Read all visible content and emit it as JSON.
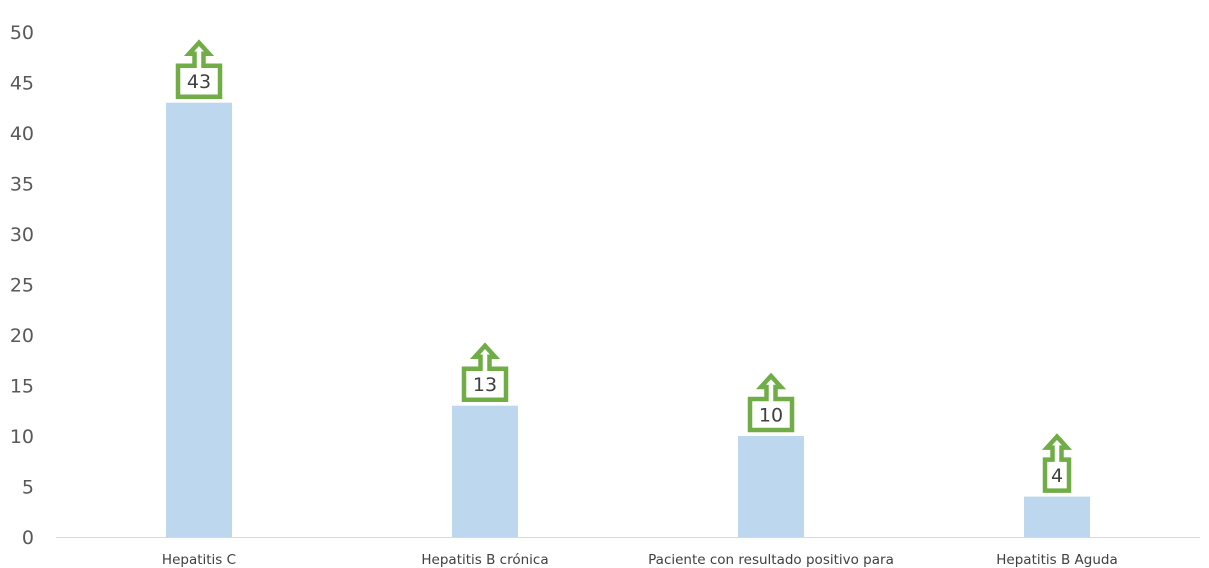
{
  "chart_data": {
    "type": "bar",
    "categories": [
      "Hepatitis C",
      "Hepatitis B crónica",
      "Paciente con resultado positivo para",
      "Hepatitis B Aguda"
    ],
    "values": [
      43,
      13,
      10,
      4
    ],
    "data_labels": [
      "43",
      "13",
      "10",
      "4"
    ],
    "y_ticks": [
      "0",
      "5",
      "10",
      "15",
      "20",
      "25",
      "30",
      "35",
      "40",
      "45",
      "50"
    ],
    "ylim": [
      0,
      50
    ],
    "y_step": 5,
    "grid": false,
    "legend": "none",
    "colors": {
      "bar": "#bdd7ee",
      "callout_border": "#70ad47",
      "axis": "#d9d9d9"
    },
    "callout_icon": "up-arrow-callout-icon"
  }
}
